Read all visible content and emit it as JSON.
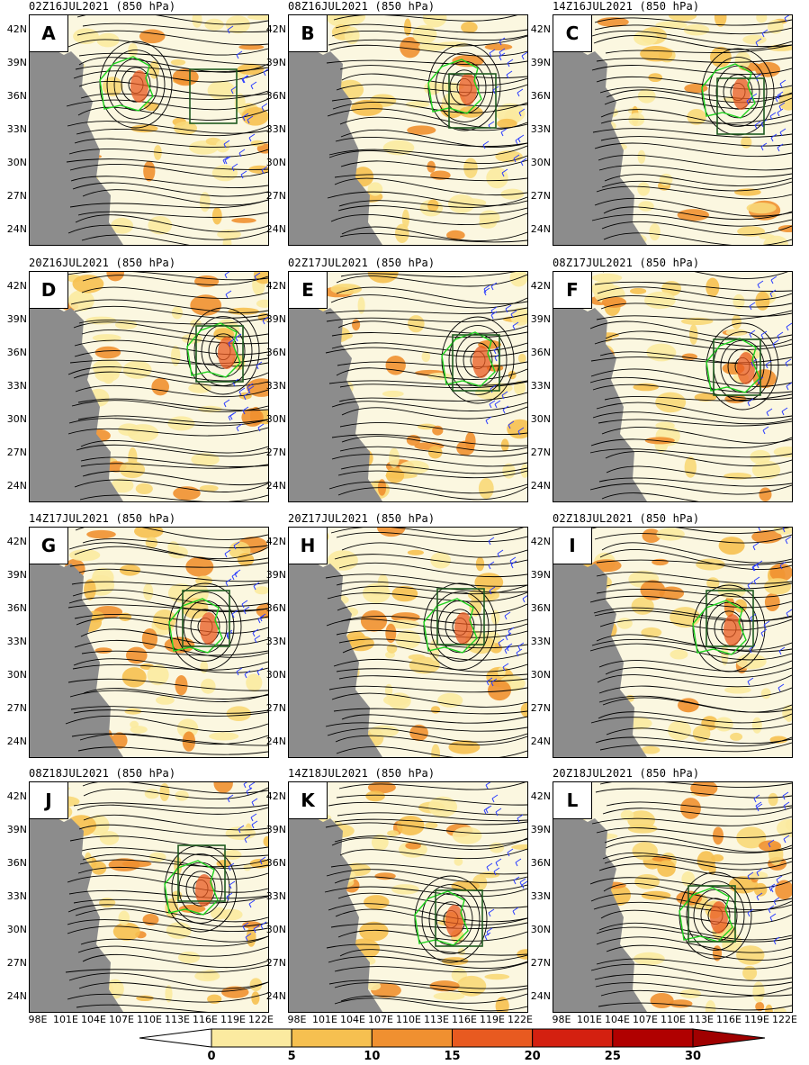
{
  "panels": [
    {
      "letter": "A",
      "title": "02Z16JUL2021 (850 hPa)",
      "vortex": [
        118,
        77
      ],
      "box": [
        178,
        60,
        52,
        60
      ]
    },
    {
      "letter": "B",
      "title": "08Z16JUL2021 (850 hPa)",
      "vortex": [
        195,
        80
      ],
      "box": [
        178,
        65,
        52,
        60
      ]
    },
    {
      "letter": "C",
      "title": "14Z16JUL2021 (850 hPa)",
      "vortex": [
        205,
        85
      ],
      "box": [
        182,
        70,
        52,
        62
      ]
    },
    {
      "letter": "D",
      "title": "20Z16JUL2021 (850 hPa)",
      "vortex": [
        215,
        88
      ],
      "box": [
        185,
        60,
        52,
        62
      ]
    },
    {
      "letter": "E",
      "title": "02Z17JUL2021 (850 hPa)",
      "vortex": [
        210,
        98
      ],
      "box": [
        182,
        70,
        52,
        62
      ]
    },
    {
      "letter": "F",
      "title": "08Z17JUL2021 (850 hPa)",
      "vortex": [
        210,
        105
      ],
      "box": [
        178,
        75,
        52,
        62
      ]
    },
    {
      "letter": "G",
      "title": "14Z17JUL2021 (850 hPa)",
      "vortex": [
        195,
        110
      ],
      "box": [
        170,
        70,
        52,
        62
      ]
    },
    {
      "letter": "H",
      "title": "20Z17JUL2021 (850 hPa)",
      "vortex": [
        190,
        110
      ],
      "box": [
        165,
        68,
        52,
        62
      ]
    },
    {
      "letter": "I",
      "title": "02Z18JUL2021 (850 hPa)",
      "vortex": [
        195,
        112
      ],
      "box": [
        170,
        70,
        52,
        62
      ]
    },
    {
      "letter": "J",
      "title": "08Z18JUL2021 (850 hPa)",
      "vortex": [
        190,
        118
      ],
      "box": [
        165,
        70,
        52,
        62
      ]
    },
    {
      "letter": "K",
      "title": "14Z18JUL2021 (850 hPa)",
      "vortex": [
        180,
        152
      ],
      "box": [
        163,
        120,
        52,
        62
      ]
    },
    {
      "letter": "L",
      "title": "20Z18JUL2021 (850 hPa)",
      "vortex": [
        180,
        148
      ],
      "box": [
        150,
        115,
        52,
        62
      ]
    }
  ],
  "y_axis_labels": [
    "42N",
    "39N",
    "36N",
    "33N",
    "30N",
    "27N",
    "24N"
  ],
  "x_axis_labels": [
    "98E",
    "101E",
    "104E",
    "107E",
    "110E",
    "113E",
    "116E",
    "119E",
    "122E"
  ],
  "colorbar": {
    "labels": [
      "0",
      "5",
      "10",
      "15",
      "20",
      "25",
      "30"
    ],
    "colors": [
      "#ffffff",
      "#fbeaa0",
      "#f6c050",
      "#f09030",
      "#e85a20",
      "#d42010",
      "#b00000",
      "#a00000"
    ]
  },
  "colors": {
    "terrain": "#8c8c8c",
    "streamline": "#000000",
    "wind_barb": "#2a3cff",
    "basin_outline": "#1ed21e",
    "box_outline": "#1f5a1f"
  }
}
